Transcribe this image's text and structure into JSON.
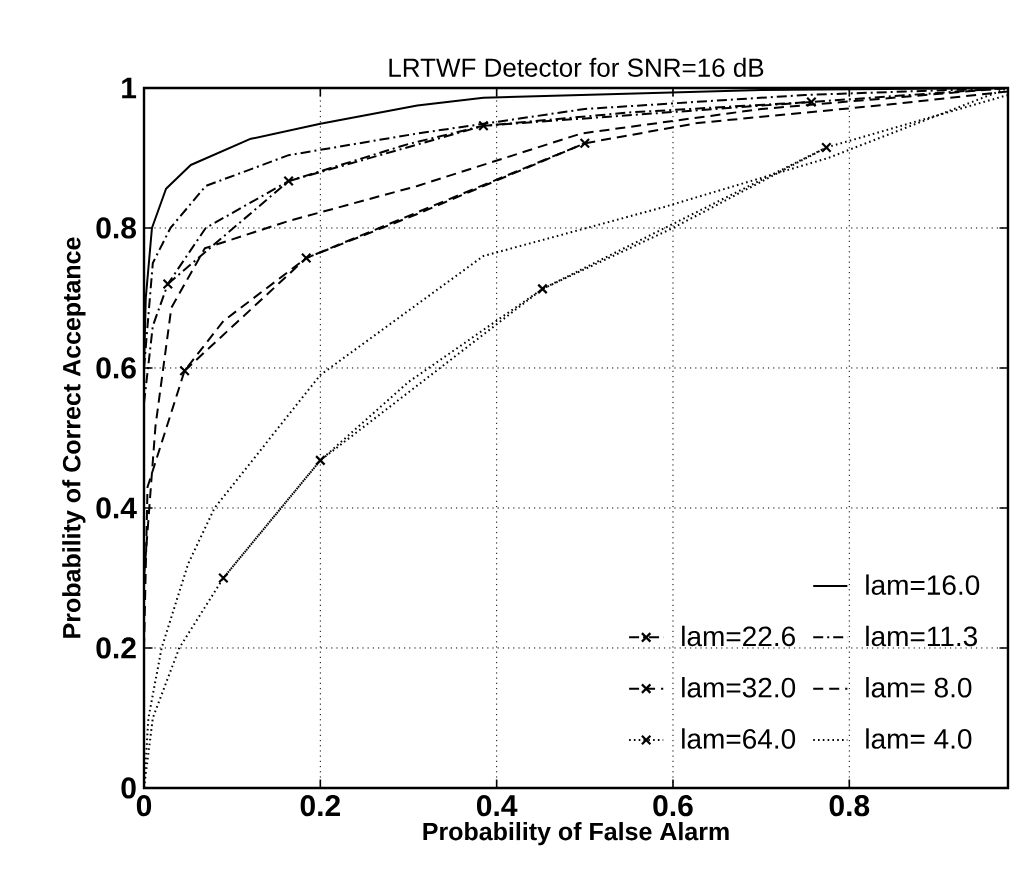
{
  "chart_data": {
    "type": "line",
    "title": "LRTWF Detector for SNR=16 dB",
    "xlabel": "Probability of False Alarm",
    "ylabel": "Probability of Correct Acceptance",
    "xlim": [
      0,
      0.98
    ],
    "ylim": [
      0,
      1
    ],
    "xticks": [
      0,
      0.2,
      0.4,
      0.6,
      0.8
    ],
    "yticks": [
      0,
      0.2,
      0.4,
      0.6,
      0.8,
      1
    ],
    "grid": true,
    "legend": "bottom right",
    "series": [
      {
        "name": "lam=16.0",
        "color": "#000000",
        "line_style": "solid",
        "marker": "none",
        "x": [
          0,
          0.002,
          0.009,
          0.025,
          0.053,
          0.12,
          0.2,
          0.31,
          0.385,
          0.496,
          0.7,
          0.98
        ],
        "values": [
          0.6,
          0.7,
          0.8,
          0.856,
          0.89,
          0.927,
          0.949,
          0.975,
          0.986,
          0.99,
          0.997,
          1
        ]
      },
      {
        "name": "lam=22.6",
        "color": "#000000",
        "line_style": "dashdot",
        "marker": "cross",
        "x": [
          0.027,
          0.164,
          0.385,
          0.757
        ],
        "values": [
          0.72,
          0.867,
          0.946,
          0.98
        ]
      },
      {
        "name": "lam=11.3",
        "color": "#000000",
        "line_style": "dashdot",
        "marker": "none",
        "x": [
          0,
          0.01,
          0.03,
          0.07,
          0.164,
          0.31,
          0.5,
          0.75,
          0.98
        ],
        "values": [
          0.6,
          0.75,
          0.8,
          0.86,
          0.904,
          0.935,
          0.97,
          0.99,
          1
        ]
      },
      {
        "name": "lam=32.0",
        "color": "#000000",
        "line_style": "dashed",
        "marker": "cross",
        "x": [
          0.046,
          0.184,
          0.5
        ],
        "values": [
          0.596,
          0.757,
          0.921
        ]
      },
      {
        "name": "lam=  8.0",
        "color": "#000000",
        "line_style": "dashed",
        "marker": "none",
        "x": [
          0,
          0.013,
          0.031,
          0.069,
          0.164,
          0.31,
          0.496,
          0.7,
          0.98
        ],
        "values": [
          0.3,
          0.517,
          0.686,
          0.771,
          0.81,
          0.86,
          0.935,
          0.97,
          1
        ]
      },
      {
        "name": "lam=64.0",
        "color": "#000000",
        "line_style": "dotted",
        "marker": "cross",
        "x": [
          0.09,
          0.2,
          0.452,
          0.774
        ],
        "values": [
          0.3,
          0.468,
          0.713,
          0.915
        ]
      },
      {
        "name": "lam=  4.0",
        "color": "#000000",
        "line_style": "dotted",
        "marker": "none",
        "x": [
          0,
          0.005,
          0.02,
          0.05,
          0.08,
          0.2,
          0.385,
          0.59,
          0.776,
          0.98
        ],
        "values": [
          0,
          0.1,
          0.2,
          0.32,
          0.4,
          0.59,
          0.76,
          0.83,
          0.9,
          1
        ]
      },
      {
        "color": "#000000",
        "line_style": "dashdot",
        "marker": "none",
        "x": [
          0,
          0.01,
          0.027,
          0.07,
          0.164,
          0.3,
          0.385,
          0.55,
          0.757,
          0.98
        ],
        "values": [
          0.55,
          0.66,
          0.72,
          0.8,
          0.867,
          0.92,
          0.946,
          0.965,
          0.98,
          1
        ]
      },
      {
        "color": "#000000",
        "line_style": "dashed",
        "marker": "none",
        "x": [
          0,
          0.004,
          0.046,
          0.09,
          0.184,
          0.31,
          0.5,
          0.628,
          0.85,
          0.98
        ],
        "values": [
          0.2,
          0.43,
          0.596,
          0.667,
          0.757,
          0.82,
          0.921,
          0.95,
          0.977,
          0.995
        ]
      },
      {
        "color": "#000000",
        "line_style": "dotted",
        "marker": "none",
        "x": [
          0,
          0.01,
          0.04,
          0.09,
          0.2,
          0.3,
          0.452,
          0.6,
          0.774,
          0.98
        ],
        "values": [
          0,
          0.1,
          0.2,
          0.3,
          0.468,
          0.58,
          0.713,
          0.8,
          0.915,
          0.99
        ]
      }
    ]
  }
}
